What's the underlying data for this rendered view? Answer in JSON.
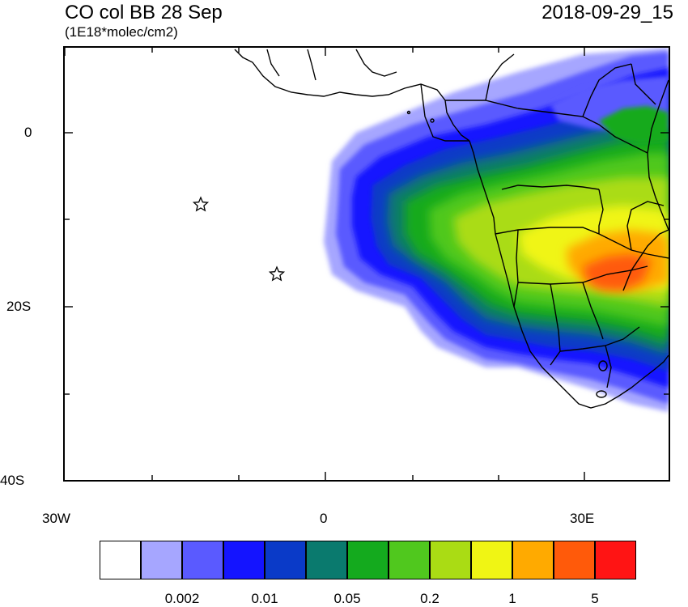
{
  "title": "CO col BB 28 Sep",
  "units": "(1E18*molec/cm2)",
  "timestamp": "2018-09-29_15",
  "axes": {
    "y_labels": [
      "0",
      "20S",
      "40S"
    ],
    "x_labels": [
      "30W",
      "0",
      "30E"
    ]
  },
  "colorbar": {
    "colors": [
      "#ffffff",
      "#a6a6ff",
      "#5a5aff",
      "#1414ff",
      "#0a3ac8",
      "#0a7a6e",
      "#14aa1e",
      "#50c81e",
      "#aadc14",
      "#f0f514",
      "#ffaa00",
      "#ff5a0a",
      "#ff1414"
    ],
    "labels": [
      "0.002",
      "0.01",
      "0.05",
      "0.2",
      "1",
      "5"
    ]
  },
  "markers": [
    {
      "name": "star-marker",
      "lon": -14.5,
      "lat": -8
    },
    {
      "name": "star-marker",
      "lon": -5.7,
      "lat": -16
    }
  ]
}
